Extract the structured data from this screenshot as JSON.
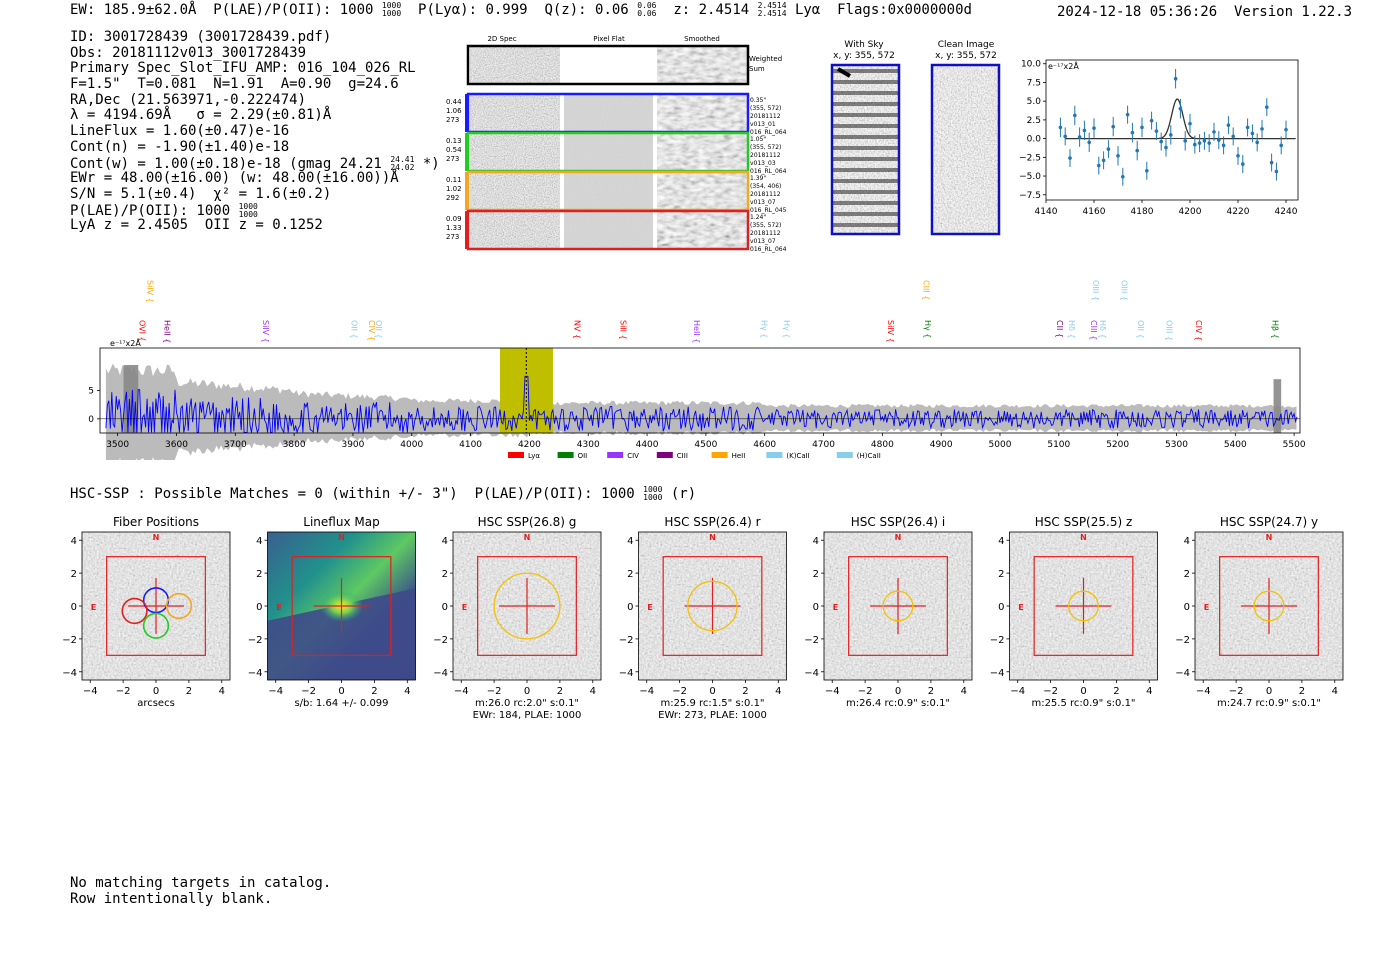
{
  "header": {
    "ew": "EW: 185.9±62.0Å",
    "plae": "P(LAE)/P(OII): 1000",
    "plae_hi": "1000",
    "plae_lo": "1000",
    "plya": "P(Lyα): 0.999",
    "qz": "Q(z): 0.06",
    "qz_hi": "0.06",
    "qz_lo": "0.06",
    "z": "z: 2.4514",
    "z_hi": "2.4514",
    "z_lo": "2.4514",
    "line": "Lyα",
    "flags": "Flags:0x0000000d",
    "timestamp": "2024-12-18 05:36:26  Version 1.22.3"
  },
  "info": {
    "id": "ID: 3001728439 (3001728439.pdf)",
    "obs": "Obs: 20181112v013_3001728439",
    "primary": "Primary Spec_Slot_IFU_AMP: 016_104_026_RL",
    "fiber": "F=1.5\"  T=0.081  N=1.91  A=0.90  g=24.6",
    "radec": "RA,Dec (21.563971,-0.222474)",
    "lambda": "λ = 4194.69Å   σ = 2.29(±0.81)Å",
    "lineflux": "LineFlux = 1.60(±0.47)e-16",
    "contn": "Cont(n) = -1.90(±1.40)e-18",
    "contw": "Cont(w) = 1.00(±0.18)e-18 (gmag 24.21",
    "contw_hi": "24.41",
    "contw_lo": "24.02",
    "contw_end": " *)",
    "ewr": "EWr = 48.00(±16.00) (w: 48.00(±16.00))Å",
    "sn": "S/N = 5.1(±0.4)  χ² = 1.6(±0.2)",
    "plae": "P(LAE)/P(OII): 1000",
    "plae_hi": "1000",
    "plae_lo": "1000",
    "lya": "LyA z = 2.4505  OII z = 0.1252"
  },
  "cutouts": {
    "col_2d": "2D Spec",
    "col_flat": "Pixel Flat",
    "col_smooth": "Smoothed",
    "weighted_1": "Weighted",
    "weighted_2": "Sum",
    "rows": [
      {
        "l1": "0.44",
        "l2": "1.06",
        "l3": "273",
        "r1": "0.35\"",
        "r2": "(355, 572)",
        "r3": "20181112",
        "r4": "v013_01",
        "r5": "016_RL_064",
        "color": "#1a1aff"
      },
      {
        "l1": "0.13",
        "l2": "0.54",
        "l3": "273",
        "r1": "1.05\"",
        "r2": "(355, 572)",
        "r3": "20181112",
        "r4": "v013_03",
        "r5": "016_RL_064",
        "color": "#22cc22"
      },
      {
        "l1": "0.11",
        "l2": "1.02",
        "l3": "292",
        "r1": "1.39\"",
        "r2": "(354, 406)",
        "r3": "20181112",
        "r4": "v013_07",
        "r5": "016_RL_045",
        "color": "#f5a623"
      },
      {
        "l1": "0.09",
        "l2": "1.33",
        "l3": "273",
        "r1": "1.24\"",
        "r2": "(355, 572)",
        "r3": "20181112",
        "r4": "v013_07",
        "r5": "016_RL_064",
        "color": "#e02020"
      }
    ]
  },
  "sky": {
    "with_sky": "With Sky",
    "with_sky_xy": "x, y: 355, 572",
    "clean": "Clean Image",
    "clean_xy": "x, y: 355, 572"
  },
  "chart_data": [
    {
      "type": "line",
      "name": "line-fit",
      "ylabel_tag": "e⁻¹⁷x2Å",
      "x": [
        4146,
        4148,
        4150,
        4152,
        4154,
        4156,
        4158,
        4160,
        4162,
        4164,
        4166,
        4168,
        4170,
        4172,
        4174,
        4176,
        4178,
        4180,
        4182,
        4184,
        4186,
        4188,
        4190,
        4192,
        4194,
        4196,
        4198,
        4200,
        4202,
        4204,
        4206,
        4208,
        4210,
        4212,
        4214,
        4216,
        4218,
        4220,
        4222,
        4224,
        4226,
        4228,
        4230,
        4232,
        4234,
        4236,
        4238,
        4240
      ],
      "y": [
        1.5,
        0.3,
        -2.6,
        3.1,
        0.2,
        1.1,
        -0.5,
        1.4,
        -3.6,
        -2.9,
        -1.4,
        1.6,
        -2.3,
        -5.1,
        3.2,
        0.8,
        -1.6,
        1.5,
        -4.3,
        2.4,
        1.0,
        -0.4,
        -1.2,
        0.5,
        8.0,
        4.0,
        -0.3,
        2.0,
        -0.8,
        -0.6,
        -0.3,
        -0.6,
        0.9,
        -0.2,
        -0.9,
        1.8,
        0.3,
        -2.3,
        -3.4,
        1.5,
        0.7,
        -0.5,
        1.3,
        4.2,
        -3.2,
        -4.4,
        -0.9,
        1.2
      ],
      "yerr": [
        1.3,
        1.2,
        1.2,
        1.3,
        1.3,
        1.3,
        1.3,
        1.3,
        1.2,
        1.2,
        1.2,
        1.3,
        1.3,
        1.2,
        1.2,
        1.3,
        1.3,
        1.3,
        1.2,
        1.2,
        1.2,
        1.2,
        1.2,
        1.3,
        1.3,
        1.3,
        1.3,
        1.3,
        1.2,
        1.2,
        1.2,
        1.2,
        1.2,
        1.2,
        1.2,
        1.2,
        1.2,
        1.2,
        1.2,
        1.2,
        1.2,
        1.2,
        1.2,
        1.2,
        1.2,
        1.2,
        1.2,
        1.2
      ],
      "fit_center": 4194.69,
      "fit_sigma": 2.29,
      "fit_amp": 5.3,
      "xlim": [
        4140,
        4245
      ],
      "ylim": [
        -8.2,
        10.5
      ],
      "xticks": [
        4140,
        4160,
        4180,
        4200,
        4220,
        4240
      ],
      "yticks": [
        10.0,
        7.5,
        5.0,
        2.5,
        0.0,
        -2.5,
        -5.0,
        -7.5
      ],
      "ytick_labels": [
        "10.0",
        "7.5",
        "5.0",
        "2.5",
        "0.0",
        "−2.5",
        "−5.0",
        "−7.5"
      ]
    },
    {
      "type": "line",
      "name": "full-spectrum",
      "ylabel_tag": "e⁻¹⁷x2Å",
      "xlim": [
        3470,
        5510
      ],
      "ylim": [
        -2.5,
        12.5
      ],
      "xticks": [
        3500,
        3600,
        3700,
        3800,
        3900,
        4000,
        4100,
        4200,
        4300,
        4400,
        4500,
        4600,
        4700,
        4800,
        4900,
        5000,
        5100,
        5200,
        5300,
        5400,
        5500
      ],
      "yticks": [
        0,
        5
      ],
      "highlight_range": [
        4150,
        4240
      ],
      "marker_x": 4194.69,
      "legend": [
        "Lyα",
        "OII",
        "CIV",
        "CIII",
        "HeII",
        "(K)CaII",
        "(H)CaII"
      ],
      "legend_colors": [
        "#ff0000",
        "#008000",
        "#9933ff",
        "#800080",
        "#ffa500",
        "#87ceeb",
        "#87ceeb"
      ],
      "lines_top": [
        {
          "label": "SiIV",
          "x": 3556,
          "color": "#ffa500"
        },
        {
          "label": "CIII",
          "x": 4875,
          "color": "#ffa500"
        },
        {
          "label": "OIII",
          "x": 5163,
          "color": "#87ceeb"
        },
        {
          "label": "OIII",
          "x": 5212,
          "color": "#87ceeb"
        }
      ],
      "lines_mid": [
        {
          "label": "OVI",
          "x": 3542,
          "color": "#ff0000"
        },
        {
          "label": "HeII",
          "x": 3585,
          "color": "#800080"
        },
        {
          "label": "SiIV",
          "x": 3752,
          "color": "#9933ff"
        },
        {
          "label": "OII",
          "x": 3903,
          "color": "#87ceeb"
        },
        {
          "label": "CIV",
          "x": 3932,
          "color": "#ffa500"
        },
        {
          "label": "OII",
          "x": 3944,
          "color": "#87ceeb"
        },
        {
          "label": "NV",
          "x": 4282,
          "color": "#ff0000"
        },
        {
          "label": "SiII",
          "x": 4360,
          "color": "#ff0000"
        },
        {
          "label": "HeII",
          "x": 4485,
          "color": "#9933ff"
        },
        {
          "label": "Hγ",
          "x": 4600,
          "color": "#87ceeb"
        },
        {
          "label": "Hγ",
          "x": 4638,
          "color": "#87ceeb"
        },
        {
          "label": "SiIV",
          "x": 4815,
          "color": "#ff0000"
        },
        {
          "label": "Hγ",
          "x": 4878,
          "color": "#008000"
        },
        {
          "label": "CII",
          "x": 5102,
          "color": "#800080"
        },
        {
          "label": "Hδ",
          "x": 5122,
          "color": "#87ceeb"
        },
        {
          "label": "CIII",
          "x": 5160,
          "color": "#9933ff"
        },
        {
          "label": "Hδ",
          "x": 5175,
          "color": "#87ceeb"
        },
        {
          "label": "OII",
          "x": 5240,
          "color": "#87ceeb"
        },
        {
          "label": "OIII",
          "x": 5288,
          "color": "#87ceeb"
        },
        {
          "label": "CIV",
          "x": 5338,
          "color": "#ff0000"
        },
        {
          "label": "Hβ",
          "x": 5468,
          "color": "#008000"
        }
      ]
    }
  ],
  "hsc": {
    "line": "HSC-SSP : Possible Matches = 0 (within +/- 3\")  P(LAE)/P(OII): 1000",
    "plae_hi": "1000",
    "plae_lo": "1000",
    "filter": " (r)",
    "axis_ticks": [
      "4",
      "2",
      "0",
      "−2",
      "−4"
    ],
    "x_ticks": [
      "−4",
      "−2",
      "0",
      "2",
      "4"
    ],
    "panels": [
      {
        "title": "Fiber Positions",
        "cap1": "arcsecs",
        "cap2": "",
        "kind": "fibers"
      },
      {
        "title": "Lineflux Map",
        "cap1": "s/b: 1.64 +/- 0.099",
        "cap2": "",
        "kind": "lineflux"
      },
      {
        "title": "HSC SSP(26.8) g",
        "cap1": "m:26.0 rc:2.0\"  s:0.1\"",
        "cap2": "EWr: 184, PLAE: 1000",
        "kind": "hsc",
        "r": 2.0
      },
      {
        "title": "HSC SSP(26.4) r",
        "cap1": "m:25.9 rc:1.5\"  s:0.1\"",
        "cap2": "EWr: 273, PLAE: 1000",
        "kind": "hsc",
        "r": 1.5
      },
      {
        "title": "HSC SSP(26.4) i",
        "cap1": "m:26.4 rc:0.9\"  s:0.1\"",
        "cap2": "",
        "kind": "hsc",
        "r": 0.9
      },
      {
        "title": "HSC SSP(25.5) z",
        "cap1": "m:25.5 rc:0.9\"  s:0.1\"",
        "cap2": "",
        "kind": "hsc",
        "r": 0.9
      },
      {
        "title": "HSC SSP(24.7) y",
        "cap1": "m:24.7 rc:0.9\"  s:0.1\"",
        "cap2": "",
        "kind": "hsc",
        "r": 0.9
      }
    ],
    "north": "N",
    "east": "E"
  },
  "footer": {
    "line1": "No matching targets in catalog.",
    "line2": "Row intentionally blank."
  }
}
